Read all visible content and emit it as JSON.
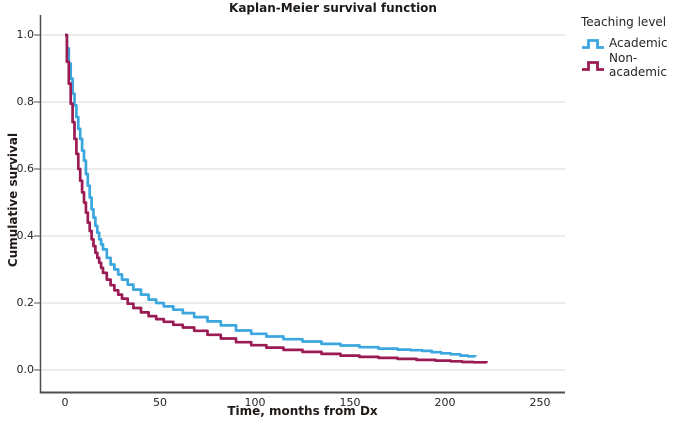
{
  "chart_data": {
    "type": "line",
    "subtype": "kaplan-meier-step",
    "title": "Kaplan-Meier survival function",
    "xlabel": "Time, months from Dx",
    "ylabel": "Cumulative survival",
    "xlim": [
      -14,
      263
    ],
    "ylim": [
      -0.065,
      1.057
    ],
    "grid": "horizontal",
    "x_ticks": [
      {
        "value": 0,
        "label": "0"
      },
      {
        "value": 50,
        "label": "50"
      },
      {
        "value": 100,
        "label": "100"
      },
      {
        "value": 150,
        "label": "150"
      },
      {
        "value": 200,
        "label": "200"
      },
      {
        "value": 250,
        "label": "250"
      }
    ],
    "y_ticks": [
      {
        "value": 1.0,
        "label": "1.0"
      },
      {
        "value": 0.8,
        "label": "0.8"
      },
      {
        "value": 0.6,
        "label": "0.6"
      },
      {
        "value": 0.4,
        "label": "0.4"
      },
      {
        "value": 0.2,
        "label": "0.2"
      },
      {
        "value": 0.0,
        "label": "0.0"
      }
    ],
    "legend": {
      "title": "Teaching level",
      "position": "top-right",
      "items": [
        {
          "label": "Academic",
          "color": "#3BA7DE"
        },
        {
          "label": "Non-academic",
          "color": "#9B1B54"
        }
      ]
    },
    "series": [
      {
        "name": "Academic",
        "color": "#3BA7DE",
        "step": true,
        "points": [
          [
            0,
            1
          ],
          [
            1,
            0.96
          ],
          [
            2,
            0.915
          ],
          [
            3,
            0.87
          ],
          [
            4,
            0.825
          ],
          [
            5,
            0.79
          ],
          [
            6,
            0.755
          ],
          [
            7,
            0.72
          ],
          [
            8,
            0.69
          ],
          [
            9,
            0.655
          ],
          [
            10,
            0.625
          ],
          [
            11,
            0.585
          ],
          [
            12,
            0.55
          ],
          [
            13,
            0.515
          ],
          [
            14,
            0.48
          ],
          [
            15,
            0.455
          ],
          [
            16,
            0.43
          ],
          [
            17,
            0.41
          ],
          [
            18,
            0.39
          ],
          [
            19,
            0.375
          ],
          [
            20,
            0.36
          ],
          [
            22,
            0.335
          ],
          [
            24,
            0.315
          ],
          [
            26,
            0.3
          ],
          [
            28,
            0.285
          ],
          [
            30,
            0.27
          ],
          [
            33,
            0.255
          ],
          [
            36,
            0.24
          ],
          [
            40,
            0.225
          ],
          [
            44,
            0.21
          ],
          [
            48,
            0.2
          ],
          [
            52,
            0.19
          ],
          [
            57,
            0.18
          ],
          [
            62,
            0.17
          ],
          [
            68,
            0.158
          ],
          [
            75,
            0.145
          ],
          [
            82,
            0.133
          ],
          [
            90,
            0.118
          ],
          [
            98,
            0.108
          ],
          [
            106,
            0.1
          ],
          [
            115,
            0.092
          ],
          [
            125,
            0.085
          ],
          [
            135,
            0.078
          ],
          [
            145,
            0.073
          ],
          [
            155,
            0.068
          ],
          [
            165,
            0.064
          ],
          [
            175,
            0.061
          ],
          [
            182,
            0.059
          ],
          [
            188,
            0.057
          ],
          [
            193,
            0.053
          ],
          [
            198,
            0.05
          ],
          [
            203,
            0.047
          ],
          [
            208,
            0.043
          ],
          [
            212,
            0.041
          ],
          [
            216,
            0.04
          ]
        ]
      },
      {
        "name": "Non-academic",
        "color": "#9B1B54",
        "step": true,
        "points": [
          [
            0,
            1
          ],
          [
            1,
            0.92
          ],
          [
            2,
            0.855
          ],
          [
            3,
            0.795
          ],
          [
            4,
            0.74
          ],
          [
            5,
            0.69
          ],
          [
            6,
            0.645
          ],
          [
            7,
            0.6
          ],
          [
            8,
            0.565
          ],
          [
            9,
            0.53
          ],
          [
            10,
            0.5
          ],
          [
            11,
            0.47
          ],
          [
            12,
            0.44
          ],
          [
            13,
            0.415
          ],
          [
            14,
            0.39
          ],
          [
            15,
            0.37
          ],
          [
            16,
            0.35
          ],
          [
            17,
            0.335
          ],
          [
            18,
            0.32
          ],
          [
            19,
            0.305
          ],
          [
            20,
            0.29
          ],
          [
            22,
            0.27
          ],
          [
            24,
            0.253
          ],
          [
            26,
            0.238
          ],
          [
            28,
            0.225
          ],
          [
            30,
            0.213
          ],
          [
            33,
            0.198
          ],
          [
            36,
            0.185
          ],
          [
            40,
            0.172
          ],
          [
            44,
            0.161
          ],
          [
            48,
            0.152
          ],
          [
            52,
            0.144
          ],
          [
            57,
            0.135
          ],
          [
            62,
            0.127
          ],
          [
            68,
            0.117
          ],
          [
            75,
            0.105
          ],
          [
            82,
            0.094
          ],
          [
            90,
            0.083
          ],
          [
            98,
            0.074
          ],
          [
            106,
            0.067
          ],
          [
            115,
            0.06
          ],
          [
            125,
            0.054
          ],
          [
            135,
            0.048
          ],
          [
            145,
            0.043
          ],
          [
            155,
            0.039
          ],
          [
            165,
            0.036
          ],
          [
            175,
            0.033
          ],
          [
            185,
            0.03
          ],
          [
            195,
            0.028
          ],
          [
            203,
            0.026
          ],
          [
            209,
            0.024
          ],
          [
            215,
            0.023
          ],
          [
            222,
            0.022
          ]
        ]
      }
    ],
    "style_colors": {
      "gridline": "#D9D9D9",
      "axis": "#4D4D4D",
      "text": "#262626",
      "background": "#FFFFFF"
    }
  }
}
